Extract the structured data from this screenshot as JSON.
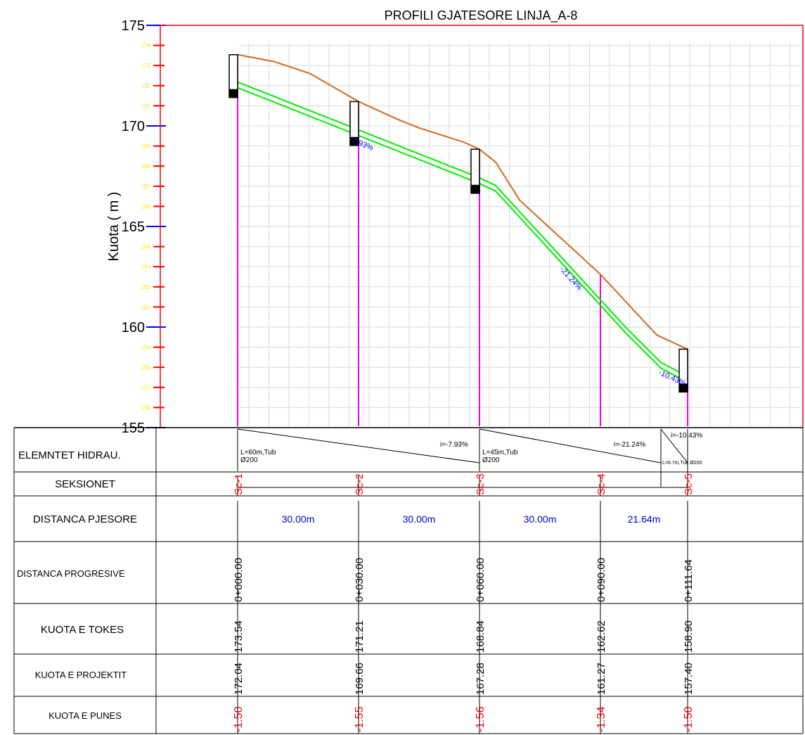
{
  "title": "PROFILI GJATESORE LINJA_A-8",
  "y_axis_label": "Kuota ( m )",
  "y_axis": {
    "major_ticks": [
      "175",
      "170",
      "165",
      "160",
      "155"
    ],
    "minor_ticks": [
      "174",
      "173",
      "172",
      "171",
      "169",
      "168",
      "167",
      "166",
      "164",
      "163",
      "162",
      "161",
      "159",
      "158",
      "157",
      "156"
    ]
  },
  "colors": {
    "frame": "#ff0000",
    "ground": "#d2691e",
    "pipe": "#00ee00",
    "section_line": "#ee00ee",
    "grid": "#d9d9d9",
    "major_tick": "#0000ff",
    "minor_tick": "#ff0000",
    "minor_tick_text": "#ffea00",
    "slope_text": "#0000ff",
    "distance_text": "#0000cc",
    "work_depth_text": "#ff0000"
  },
  "row_labels": {
    "hydraulic": "ELEMNTET HIDRAU.",
    "sections": "SEKSIONET",
    "partial_distance": "DISTANCA PJESORE",
    "progressive_distance": "DISTANCA PROGRESIVE",
    "ground_level": "KUOTA E TOKES",
    "project_level": "KUOTA E PROJEKTIT",
    "work_depth": "KUOTA E PUNES"
  },
  "hydraulic_elements": [
    {
      "length_label": "L=60m,Tub",
      "diameter_label": "Ø200",
      "slope_label": "i=-7.93%"
    },
    {
      "length_label": "L=45m,Tub",
      "diameter_label": "Ø200",
      "slope_label": "i=-21.24%"
    },
    {
      "length_label": "L=6.7m,Tub Ø200",
      "slope_label": "i=-10.43%"
    }
  ],
  "pipe_slope_labels": [
    "-7.93%",
    "-21.24%",
    "-10.43%"
  ],
  "partial_distances": [
    "30.00m",
    "30.00m",
    "30.00m",
    "21.64m"
  ],
  "chart_data": {
    "type": "line",
    "title": "PROFILI GJATESORE LINJA_A-8",
    "ylabel": "Kuota ( m )",
    "ylim": [
      155,
      175
    ],
    "sections": [
      {
        "name": "Sc-1",
        "station": "0+000.00",
        "ground": "173.54",
        "project": "172.04",
        "work": "-1.50",
        "x": 0.0
      },
      {
        "name": "Sc-2",
        "station": "0+030.00",
        "ground": "171.21",
        "project": "169.66",
        "work": "-1.55",
        "x": 30.0
      },
      {
        "name": "Sc-3",
        "station": "0+060.00",
        "ground": "168.84",
        "project": "167.28",
        "work": "-1.56",
        "x": 60.0
      },
      {
        "name": "Sc-4",
        "station": "0+090.00",
        "ground": "162.62",
        "project": "161.27",
        "work": "-1.34",
        "x": 90.0
      },
      {
        "name": "Sc-5",
        "station": "0+111.64",
        "ground": "158.90",
        "project": "157.40",
        "work": "-1.50",
        "x": 111.64
      }
    ],
    "ground_profile": [
      [
        0,
        173.54
      ],
      [
        9,
        173.2
      ],
      [
        18,
        172.6
      ],
      [
        30,
        171.21
      ],
      [
        40,
        170.3
      ],
      [
        45,
        169.9
      ],
      [
        56,
        169.2
      ],
      [
        60,
        168.84
      ],
      [
        64,
        168.2
      ],
      [
        70,
        166.3
      ],
      [
        90,
        162.62
      ],
      [
        104,
        159.6
      ],
      [
        111.64,
        158.9
      ]
    ],
    "pipe_profile": [
      [
        0,
        172.04
      ],
      [
        60,
        167.28
      ],
      [
        64,
        166.9
      ],
      [
        96.5,
        159.8
      ],
      [
        105,
        158.1
      ],
      [
        111.64,
        157.4
      ]
    ]
  }
}
